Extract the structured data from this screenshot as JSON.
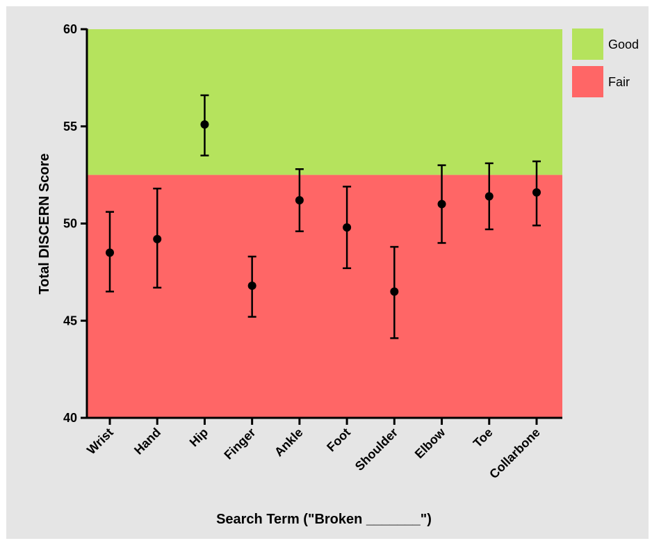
{
  "chart_data": {
    "type": "scatter",
    "title": "",
    "xlabel": "Search Term (\"Broken _______\")",
    "ylabel": "Total DISCERN Score",
    "ylim": [
      40,
      60
    ],
    "yticks": [
      "40",
      "45",
      "50",
      "55",
      "60"
    ],
    "categories": [
      "Wrist",
      "Hand",
      "Hip",
      "Finger",
      "Ankle",
      "Foot",
      "Shoulder",
      "Elbow",
      "Toe",
      "Collarbone"
    ],
    "values": [
      48.5,
      49.2,
      55.1,
      46.8,
      51.2,
      49.8,
      46.5,
      51.0,
      51.4,
      51.6
    ],
    "error_low": [
      46.5,
      46.7,
      53.5,
      45.2,
      49.6,
      47.7,
      44.1,
      49.0,
      49.7,
      49.9
    ],
    "error_high": [
      50.6,
      51.8,
      56.6,
      48.3,
      52.8,
      51.9,
      48.8,
      53.0,
      53.1,
      53.2
    ],
    "bands": [
      {
        "name": "Good",
        "from": 52.5,
        "to": 60,
        "color": "#b5e35d"
      },
      {
        "name": "Fair",
        "from": 40,
        "to": 52.5,
        "color": "#ff6666"
      }
    ],
    "legend": {
      "position": "right",
      "entries": [
        "Good",
        "Fair"
      ]
    },
    "grid": false
  }
}
